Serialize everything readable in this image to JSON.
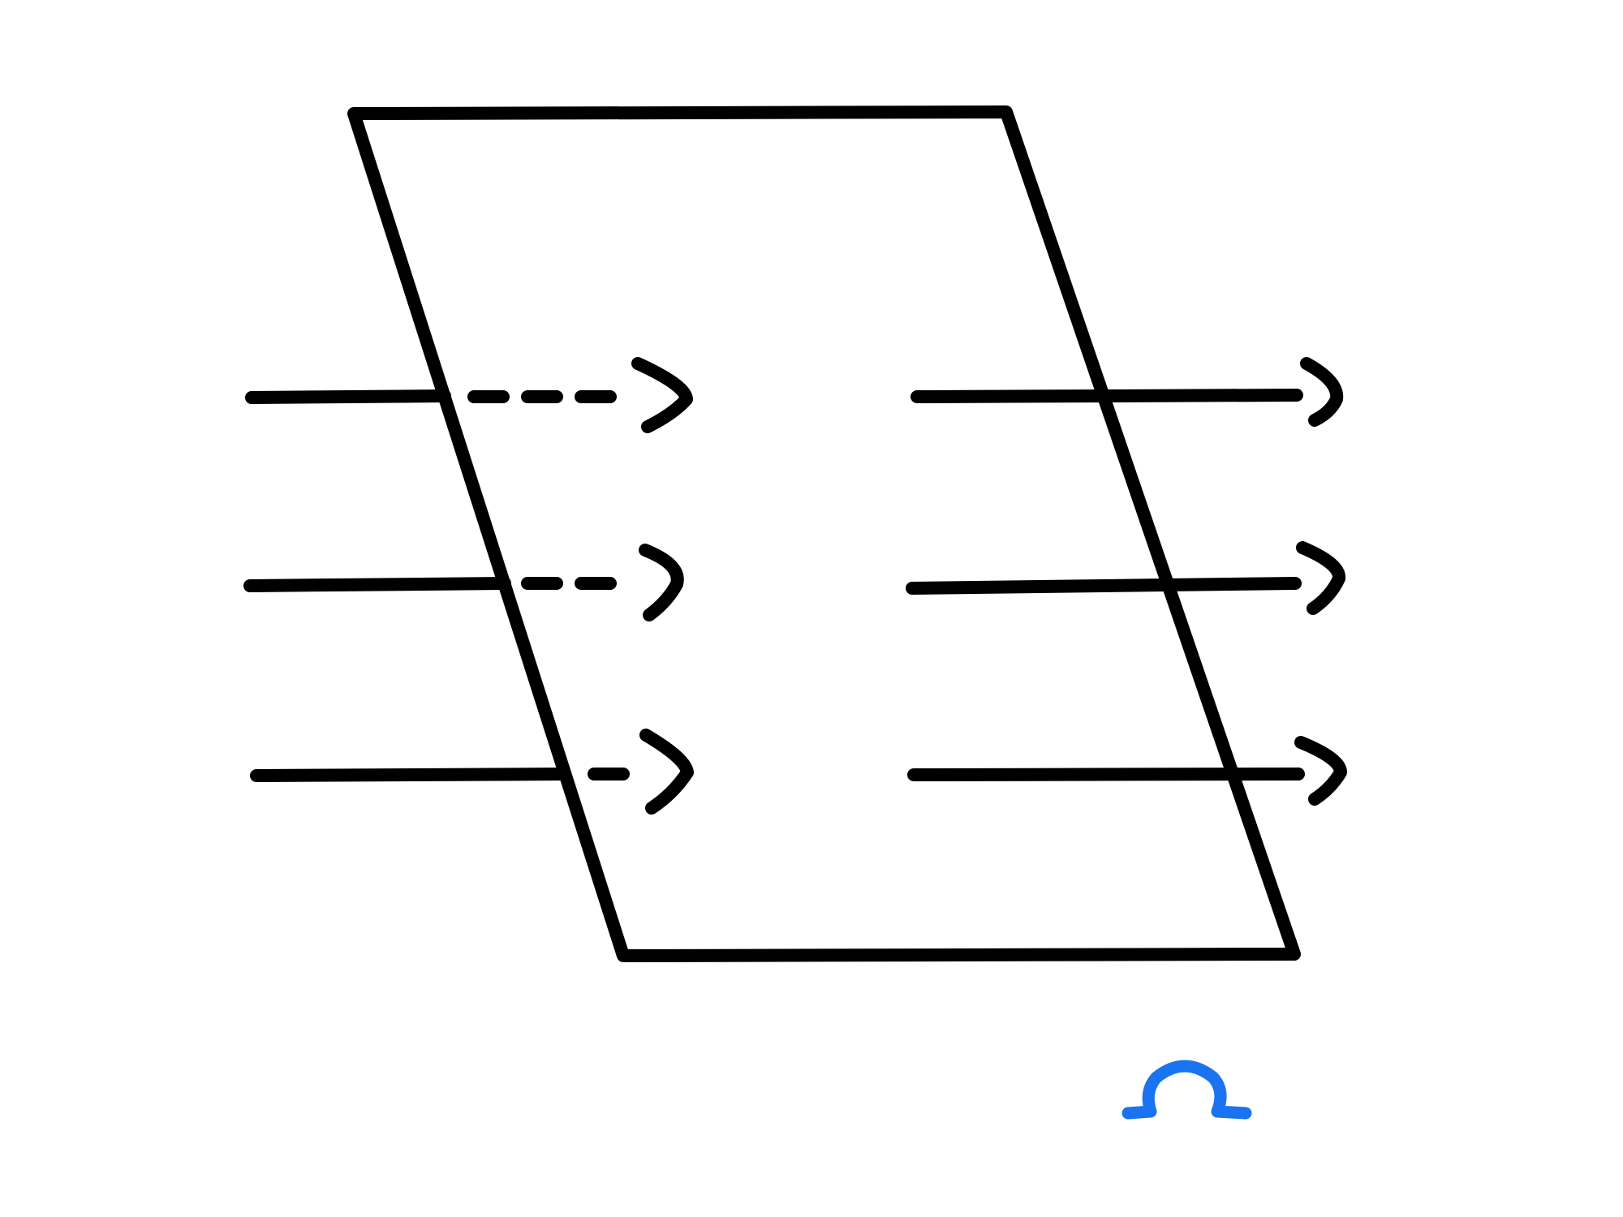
{
  "diagram": {
    "shape": "parallelogram",
    "stroke_color": "#000000",
    "background_color": "#ffffff",
    "incoming_arrows": [
      {
        "name": "incoming-arrow-top",
        "style": "solid-then-dashed"
      },
      {
        "name": "incoming-arrow-middle",
        "style": "solid-then-dashed"
      },
      {
        "name": "incoming-arrow-bottom",
        "style": "solid-then-dashed"
      }
    ],
    "outgoing_arrows": [
      {
        "name": "outgoing-arrow-top",
        "style": "solid"
      },
      {
        "name": "outgoing-arrow-middle",
        "style": "solid"
      },
      {
        "name": "outgoing-arrow-bottom",
        "style": "solid"
      }
    ]
  },
  "logo": {
    "icon": "omega-logo-icon",
    "color": "#1a73f0"
  }
}
